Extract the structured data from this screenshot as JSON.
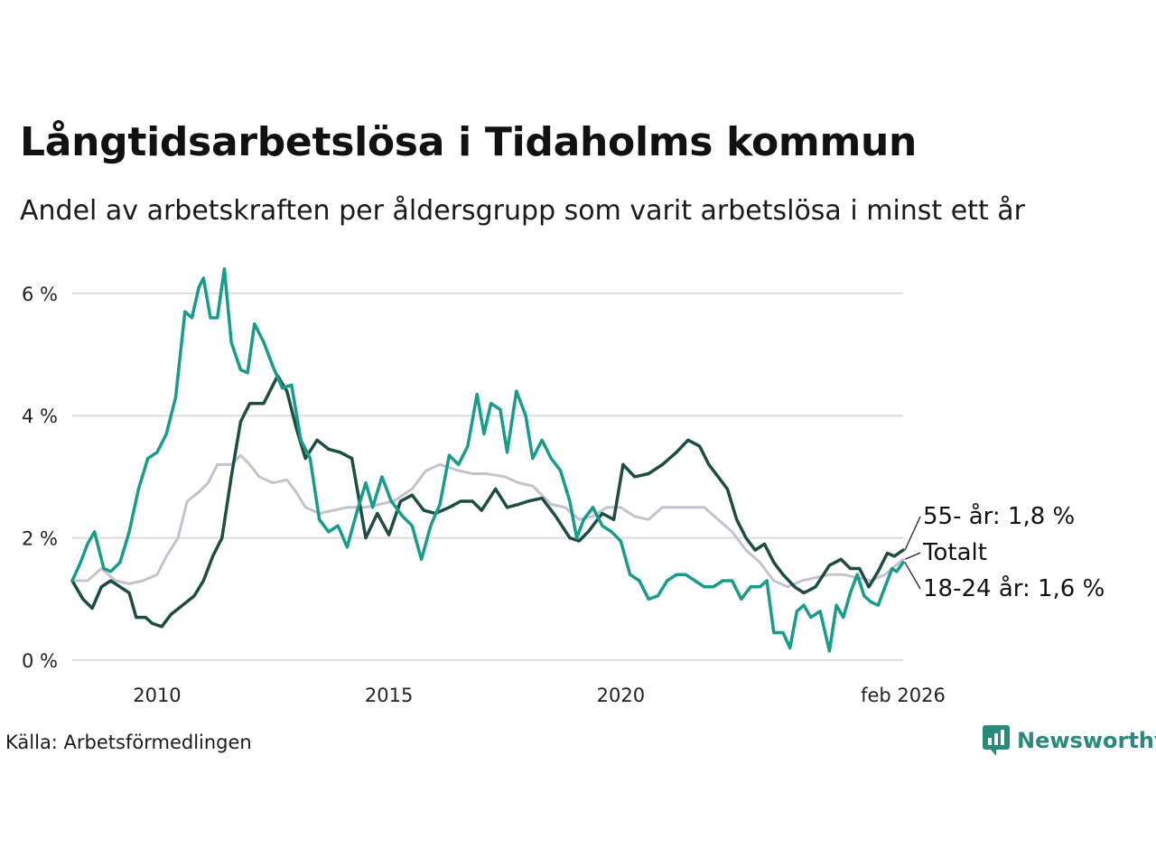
{
  "title": "Långtidsarbetslösa i Tidaholms kommun",
  "subtitle": "Andel av arbetskraften per åldersgrupp som varit arbetslösa i minst ett år",
  "source": "Källa: Arbetsförmedlingen",
  "brand": "Newsworthy",
  "colors": {
    "total": "#c5c2cf",
    "age55": "#1d4d42",
    "age18_24": "#179c89",
    "brand": "#2a8a7a",
    "grid": "#dddddd"
  },
  "chart_data": {
    "type": "line",
    "title": "Långtidsarbetslösa i Tidaholms kommun",
    "ylabel": "",
    "xlabel": "",
    "ylim": [
      0,
      6.5
    ],
    "yticks": [
      0,
      2,
      4,
      6
    ],
    "ytick_labels": [
      "0 %",
      "2 %",
      "4 %",
      "6 %"
    ],
    "xlim": [
      2008.17,
      2026.09
    ],
    "xticks": [
      2010,
      2015,
      2020,
      2026.09
    ],
    "xtick_labels": [
      "2010",
      "2015",
      "2020",
      "feb 2026"
    ],
    "series": [
      {
        "name": "Totalt",
        "key": "total",
        "label": "Totalt",
        "points": [
          [
            2008.17,
            1.3
          ],
          [
            2008.5,
            1.3
          ],
          [
            2008.8,
            1.5
          ],
          [
            2009.1,
            1.3
          ],
          [
            2009.4,
            1.25
          ],
          [
            2009.7,
            1.3
          ],
          [
            2010.0,
            1.4
          ],
          [
            2010.2,
            1.7
          ],
          [
            2010.45,
            2.0
          ],
          [
            2010.65,
            2.6
          ],
          [
            2010.9,
            2.75
          ],
          [
            2011.1,
            2.9
          ],
          [
            2011.3,
            3.2
          ],
          [
            2011.6,
            3.2
          ],
          [
            2011.8,
            3.35
          ],
          [
            2012.0,
            3.2
          ],
          [
            2012.2,
            3.0
          ],
          [
            2012.5,
            2.9
          ],
          [
            2012.8,
            2.95
          ],
          [
            2013.0,
            2.75
          ],
          [
            2013.2,
            2.5
          ],
          [
            2013.5,
            2.4
          ],
          [
            2013.8,
            2.45
          ],
          [
            2014.1,
            2.5
          ],
          [
            2014.5,
            2.5
          ],
          [
            2014.8,
            2.55
          ],
          [
            2015.1,
            2.6
          ],
          [
            2015.5,
            2.8
          ],
          [
            2015.8,
            3.1
          ],
          [
            2016.1,
            3.2
          ],
          [
            2016.5,
            3.1
          ],
          [
            2016.8,
            3.05
          ],
          [
            2017.1,
            3.05
          ],
          [
            2017.5,
            3.0
          ],
          [
            2017.8,
            2.9
          ],
          [
            2018.1,
            2.85
          ],
          [
            2018.5,
            2.55
          ],
          [
            2018.8,
            2.5
          ],
          [
            2019.1,
            2.3
          ],
          [
            2019.4,
            2.35
          ],
          [
            2019.7,
            2.5
          ],
          [
            2020.0,
            2.5
          ],
          [
            2020.3,
            2.35
          ],
          [
            2020.6,
            2.3
          ],
          [
            2020.9,
            2.5
          ],
          [
            2021.2,
            2.5
          ],
          [
            2021.5,
            2.5
          ],
          [
            2021.8,
            2.5
          ],
          [
            2022.1,
            2.3
          ],
          [
            2022.4,
            2.1
          ],
          [
            2022.7,
            1.8
          ],
          [
            2023.0,
            1.6
          ],
          [
            2023.3,
            1.3
          ],
          [
            2023.6,
            1.2
          ],
          [
            2023.9,
            1.3
          ],
          [
            2024.2,
            1.35
          ],
          [
            2024.5,
            1.4
          ],
          [
            2024.8,
            1.4
          ],
          [
            2025.1,
            1.35
          ],
          [
            2025.4,
            1.3
          ],
          [
            2025.7,
            1.4
          ],
          [
            2026.09,
            1.65
          ]
        ]
      },
      {
        "name": "55- år",
        "key": "age55",
        "label": "55- år: 1,8 %",
        "points": [
          [
            2008.17,
            1.3
          ],
          [
            2008.4,
            1.0
          ],
          [
            2008.6,
            0.85
          ],
          [
            2008.8,
            1.2
          ],
          [
            2009.0,
            1.3
          ],
          [
            2009.2,
            1.2
          ],
          [
            2009.4,
            1.1
          ],
          [
            2009.55,
            0.7
          ],
          [
            2009.75,
            0.7
          ],
          [
            2009.9,
            0.6
          ],
          [
            2010.1,
            0.55
          ],
          [
            2010.3,
            0.75
          ],
          [
            2010.55,
            0.9
          ],
          [
            2010.8,
            1.05
          ],
          [
            2011.0,
            1.3
          ],
          [
            2011.2,
            1.7
          ],
          [
            2011.4,
            2.0
          ],
          [
            2011.6,
            3.0
          ],
          [
            2011.8,
            3.9
          ],
          [
            2012.0,
            4.2
          ],
          [
            2012.3,
            4.2
          ],
          [
            2012.6,
            4.65
          ],
          [
            2012.8,
            4.4
          ],
          [
            2013.0,
            3.8
          ],
          [
            2013.2,
            3.3
          ],
          [
            2013.45,
            3.6
          ],
          [
            2013.7,
            3.45
          ],
          [
            2013.95,
            3.4
          ],
          [
            2014.2,
            3.3
          ],
          [
            2014.5,
            2.0
          ],
          [
            2014.75,
            2.4
          ],
          [
            2015.0,
            2.05
          ],
          [
            2015.25,
            2.6
          ],
          [
            2015.5,
            2.7
          ],
          [
            2015.75,
            2.45
          ],
          [
            2016.0,
            2.4
          ],
          [
            2016.3,
            2.5
          ],
          [
            2016.55,
            2.6
          ],
          [
            2016.8,
            2.6
          ],
          [
            2017.0,
            2.45
          ],
          [
            2017.3,
            2.8
          ],
          [
            2017.55,
            2.5
          ],
          [
            2017.8,
            2.55
          ],
          [
            2018.0,
            2.6
          ],
          [
            2018.3,
            2.65
          ],
          [
            2018.6,
            2.35
          ],
          [
            2018.9,
            2.0
          ],
          [
            2019.1,
            1.95
          ],
          [
            2019.3,
            2.1
          ],
          [
            2019.6,
            2.4
          ],
          [
            2019.85,
            2.3
          ],
          [
            2020.05,
            3.2
          ],
          [
            2020.3,
            3.0
          ],
          [
            2020.6,
            3.05
          ],
          [
            2020.9,
            3.2
          ],
          [
            2021.2,
            3.4
          ],
          [
            2021.45,
            3.6
          ],
          [
            2021.7,
            3.5
          ],
          [
            2021.9,
            3.2
          ],
          [
            2022.1,
            3.0
          ],
          [
            2022.3,
            2.8
          ],
          [
            2022.5,
            2.3
          ],
          [
            2022.7,
            2.0
          ],
          [
            2022.9,
            1.8
          ],
          [
            2023.1,
            1.9
          ],
          [
            2023.3,
            1.6
          ],
          [
            2023.5,
            1.4
          ],
          [
            2023.75,
            1.2
          ],
          [
            2023.95,
            1.1
          ],
          [
            2024.2,
            1.2
          ],
          [
            2024.5,
            1.55
          ],
          [
            2024.75,
            1.65
          ],
          [
            2024.95,
            1.5
          ],
          [
            2025.15,
            1.5
          ],
          [
            2025.35,
            1.2
          ],
          [
            2025.55,
            1.45
          ],
          [
            2025.75,
            1.75
          ],
          [
            2025.9,
            1.7
          ],
          [
            2026.09,
            1.8
          ]
        ]
      },
      {
        "name": "18-24 år",
        "key": "age18_24",
        "label": "18-24 år: 1,6 %",
        "points": [
          [
            2008.17,
            1.3
          ],
          [
            2008.35,
            1.6
          ],
          [
            2008.5,
            1.9
          ],
          [
            2008.65,
            2.1
          ],
          [
            2008.85,
            1.5
          ],
          [
            2009.0,
            1.45
          ],
          [
            2009.2,
            1.6
          ],
          [
            2009.4,
            2.1
          ],
          [
            2009.6,
            2.8
          ],
          [
            2009.8,
            3.3
          ],
          [
            2010.0,
            3.4
          ],
          [
            2010.2,
            3.7
          ],
          [
            2010.4,
            4.3
          ],
          [
            2010.6,
            5.7
          ],
          [
            2010.75,
            5.6
          ],
          [
            2010.9,
            6.1
          ],
          [
            2011.0,
            6.25
          ],
          [
            2011.15,
            5.6
          ],
          [
            2011.3,
            5.6
          ],
          [
            2011.45,
            6.4
          ],
          [
            2011.6,
            5.2
          ],
          [
            2011.8,
            4.75
          ],
          [
            2011.95,
            4.7
          ],
          [
            2012.1,
            5.5
          ],
          [
            2012.3,
            5.2
          ],
          [
            2012.5,
            4.8
          ],
          [
            2012.7,
            4.45
          ],
          [
            2012.9,
            4.5
          ],
          [
            2013.1,
            3.6
          ],
          [
            2013.3,
            3.3
          ],
          [
            2013.5,
            2.3
          ],
          [
            2013.7,
            2.1
          ],
          [
            2013.9,
            2.2
          ],
          [
            2014.1,
            1.85
          ],
          [
            2014.3,
            2.4
          ],
          [
            2014.5,
            2.9
          ],
          [
            2014.65,
            2.5
          ],
          [
            2014.85,
            3.0
          ],
          [
            2015.05,
            2.6
          ],
          [
            2015.3,
            2.35
          ],
          [
            2015.5,
            2.2
          ],
          [
            2015.7,
            1.65
          ],
          [
            2015.9,
            2.2
          ],
          [
            2016.1,
            2.55
          ],
          [
            2016.3,
            3.35
          ],
          [
            2016.5,
            3.2
          ],
          [
            2016.7,
            3.5
          ],
          [
            2016.9,
            4.35
          ],
          [
            2017.05,
            3.7
          ],
          [
            2017.2,
            4.2
          ],
          [
            2017.4,
            4.1
          ],
          [
            2017.55,
            3.4
          ],
          [
            2017.75,
            4.4
          ],
          [
            2017.95,
            4.0
          ],
          [
            2018.1,
            3.3
          ],
          [
            2018.3,
            3.6
          ],
          [
            2018.5,
            3.3
          ],
          [
            2018.7,
            3.1
          ],
          [
            2018.9,
            2.6
          ],
          [
            2019.05,
            2.0
          ],
          [
            2019.2,
            2.3
          ],
          [
            2019.4,
            2.5
          ],
          [
            2019.6,
            2.2
          ],
          [
            2019.8,
            2.1
          ],
          [
            2020.0,
            1.95
          ],
          [
            2020.2,
            1.4
          ],
          [
            2020.4,
            1.3
          ],
          [
            2020.6,
            1.0
          ],
          [
            2020.8,
            1.05
          ],
          [
            2021.0,
            1.3
          ],
          [
            2021.2,
            1.4
          ],
          [
            2021.4,
            1.4
          ],
          [
            2021.6,
            1.3
          ],
          [
            2021.8,
            1.2
          ],
          [
            2022.0,
            1.2
          ],
          [
            2022.2,
            1.3
          ],
          [
            2022.4,
            1.3
          ],
          [
            2022.6,
            1.0
          ],
          [
            2022.8,
            1.2
          ],
          [
            2023.0,
            1.2
          ],
          [
            2023.15,
            1.3
          ],
          [
            2023.3,
            0.45
          ],
          [
            2023.5,
            0.45
          ],
          [
            2023.65,
            0.2
          ],
          [
            2023.8,
            0.8
          ],
          [
            2023.95,
            0.9
          ],
          [
            2024.1,
            0.7
          ],
          [
            2024.3,
            0.8
          ],
          [
            2024.5,
            0.15
          ],
          [
            2024.65,
            0.9
          ],
          [
            2024.8,
            0.7
          ],
          [
            2024.95,
            1.1
          ],
          [
            2025.1,
            1.4
          ],
          [
            2025.25,
            1.05
          ],
          [
            2025.4,
            0.95
          ],
          [
            2025.55,
            0.9
          ],
          [
            2025.7,
            1.2
          ],
          [
            2025.85,
            1.5
          ],
          [
            2025.95,
            1.45
          ],
          [
            2026.09,
            1.6
          ]
        ]
      }
    ]
  }
}
